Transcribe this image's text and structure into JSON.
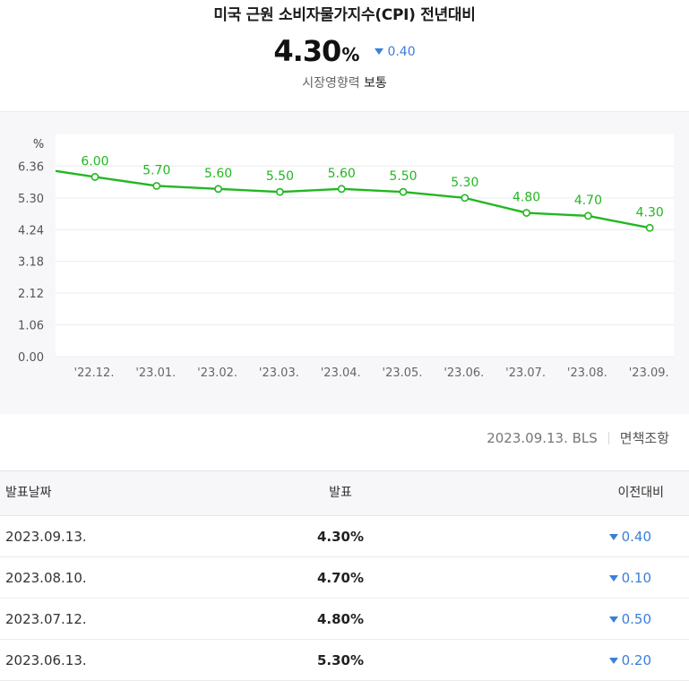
{
  "header": {
    "title": "미국 근원 소비자물가지수(CPI) 전년대비",
    "value": "4.30",
    "unit": "%",
    "change": "0.40",
    "change_direction": "down",
    "influence_label": "시장영향력",
    "influence_value": "보통"
  },
  "colors": {
    "line": "#22b722",
    "down": "#3a7fd9",
    "chart_bg": "#f7f7f9"
  },
  "chart_data": {
    "type": "line",
    "unit_label": "%",
    "categories": [
      "'22.12.",
      "'23.01.",
      "'23.02.",
      "'23.03.",
      "'23.04.",
      "'23.05.",
      "'23.06.",
      "'23.07.",
      "'23.08.",
      "'23.09."
    ],
    "values": [
      6.0,
      5.7,
      5.6,
      5.5,
      5.6,
      5.5,
      5.3,
      4.8,
      4.7,
      4.3
    ],
    "value_labels": [
      "6.00",
      "5.70",
      "5.60",
      "5.50",
      "5.60",
      "5.50",
      "5.30",
      "4.80",
      "4.70",
      "4.30"
    ],
    "y_ticks": [
      "0.00",
      "1.06",
      "2.12",
      "3.18",
      "4.24",
      "5.30",
      "6.36"
    ],
    "ylim": [
      0,
      7.42
    ],
    "line_start_value": 6.2,
    "grid": true
  },
  "source": {
    "text": "2023.09.13. BLS",
    "disclaimer": "면책조항"
  },
  "table": {
    "headers": {
      "date": "발표날짜",
      "value": "발표",
      "change": "이전대비"
    },
    "rows": [
      {
        "date": "2023.09.13.",
        "value": "4.30%",
        "change": "0.40"
      },
      {
        "date": "2023.08.10.",
        "value": "4.70%",
        "change": "0.10"
      },
      {
        "date": "2023.07.12.",
        "value": "4.80%",
        "change": "0.50"
      },
      {
        "date": "2023.06.13.",
        "value": "5.30%",
        "change": "0.20"
      }
    ]
  }
}
